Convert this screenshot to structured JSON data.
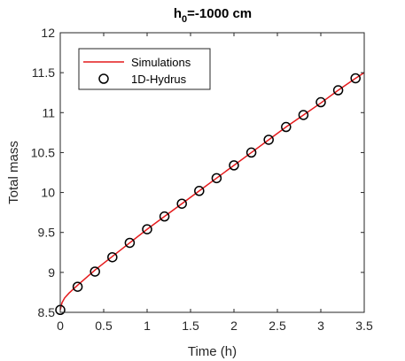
{
  "chart_data": {
    "type": "line",
    "title": "h",
    "title_sub": "0",
    "title_rest": "=-1000 cm",
    "xlabel": "Time (h)",
    "ylabel": "Total mass",
    "xlim": [
      0,
      3.5
    ],
    "ylim": [
      8.5,
      12
    ],
    "x_ticks": [
      0,
      0.5,
      1,
      1.5,
      2,
      2.5,
      3,
      3.5
    ],
    "x_tick_labels": [
      "0",
      "0.5",
      "1",
      "1.5",
      "2",
      "2.5",
      "3",
      "3.5"
    ],
    "y_ticks": [
      8.5,
      9,
      9.5,
      10,
      10.5,
      11,
      11.5,
      12
    ],
    "y_tick_labels": [
      "8.5",
      "9",
      "9.5",
      "10",
      "10.5",
      "11",
      "11.5",
      "12"
    ],
    "grid": false,
    "legend_position": "top-left",
    "series": [
      {
        "name": "Simulations",
        "style": "line",
        "color": "#e41a1c",
        "x": [
          0,
          0.02,
          0.05,
          0.1,
          0.2,
          0.4,
          0.6,
          0.8,
          1.0,
          1.2,
          1.4,
          1.6,
          1.8,
          2.0,
          2.2,
          2.4,
          2.6,
          2.8,
          3.0,
          3.2,
          3.4,
          3.5
        ],
        "y": [
          8.53,
          8.62,
          8.68,
          8.74,
          8.84,
          9.03,
          9.2,
          9.37,
          9.54,
          9.7,
          9.86,
          10.02,
          10.18,
          10.34,
          10.5,
          10.66,
          10.82,
          10.97,
          11.12,
          11.28,
          11.43,
          11.5
        ]
      },
      {
        "name": "1D-Hydrus",
        "style": "marker",
        "color": "#000000",
        "x": [
          0,
          0.2,
          0.4,
          0.6,
          0.8,
          1.0,
          1.2,
          1.4,
          1.6,
          1.8,
          2.0,
          2.2,
          2.4,
          2.6,
          2.8,
          3.0,
          3.2,
          3.4
        ],
        "y": [
          8.53,
          8.82,
          9.01,
          9.19,
          9.37,
          9.54,
          9.7,
          9.86,
          10.02,
          10.18,
          10.34,
          10.5,
          10.66,
          10.82,
          10.97,
          11.13,
          11.28,
          11.43
        ]
      }
    ]
  }
}
